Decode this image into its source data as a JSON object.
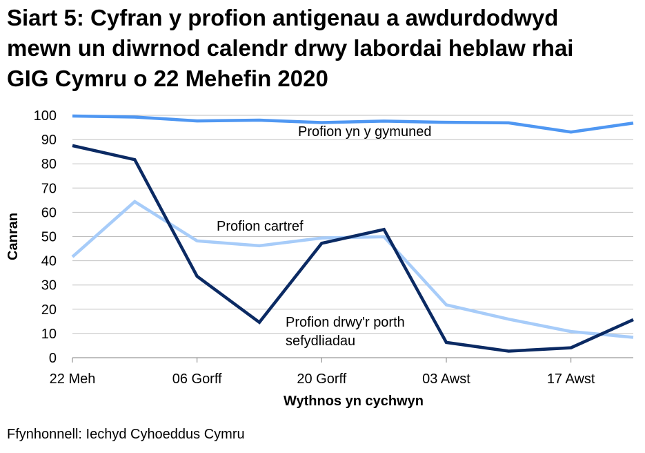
{
  "title_lines": [
    "Siart 5: Cyfran y profion antigenau a awdurdodwyd",
    "mewn un diwrnod calendr drwy labordai heblaw rhai",
    "GIG Cymru o 22 Mehefin 2020"
  ],
  "source": "Ffynhonnell: Iechyd Cyhoeddus Cymru",
  "colors": {
    "community": "#4f97f2",
    "home": "#a7ccf9",
    "institutional": "#0b2a63",
    "grid": "#bfbfbf",
    "axis": "#7f7f7f"
  },
  "chart_data": {
    "type": "line",
    "title": "Siart 5: Cyfran y profion antigenau a awdurdodwyd mewn un diwrnod calendr drwy labordai heblaw rhai GIG Cymru o 22 Mehefin 2020",
    "xlabel": "Wythnos yn cychwyn",
    "ylabel": "Canran",
    "ylim": [
      0,
      100
    ],
    "yticks": [
      0,
      10,
      20,
      30,
      40,
      50,
      60,
      70,
      80,
      90,
      100
    ],
    "grid": true,
    "x_labeled_ticks": [
      {
        "index": 0,
        "label": "22 Meh"
      },
      {
        "index": 2,
        "label": "06 Gorff"
      },
      {
        "index": 4,
        "label": "20 Gorff"
      },
      {
        "index": 6,
        "label": "03 Awst"
      },
      {
        "index": 8,
        "label": "17 Awst"
      }
    ],
    "x_count": 10,
    "series": [
      {
        "name": "Profion yn y gymuned",
        "color_key": "community",
        "values": [
          99.7,
          99.3,
          97.7,
          98.0,
          97.0,
          97.6,
          97.1,
          96.9,
          93.1,
          96.8
        ]
      },
      {
        "name": "Profion cartref",
        "color_key": "home",
        "values": [
          41.6,
          64.4,
          48.2,
          46.2,
          49.4,
          49.9,
          21.8,
          15.9,
          10.8,
          8.4
        ]
      },
      {
        "name": "Profion drwy'r porth sefydliadau",
        "color_key": "institutional",
        "values": [
          87.5,
          81.7,
          33.6,
          14.6,
          47.2,
          52.9,
          6.3,
          2.7,
          4.1,
          15.7
        ]
      }
    ],
    "series_labels": [
      {
        "series": 0,
        "lines": [
          "Profion yn y gymuned"
        ]
      },
      {
        "series": 1,
        "lines": [
          "Profion cartref"
        ]
      },
      {
        "series": 2,
        "lines": [
          "Profion drwy'r porth",
          "sefydliadau"
        ]
      }
    ]
  }
}
